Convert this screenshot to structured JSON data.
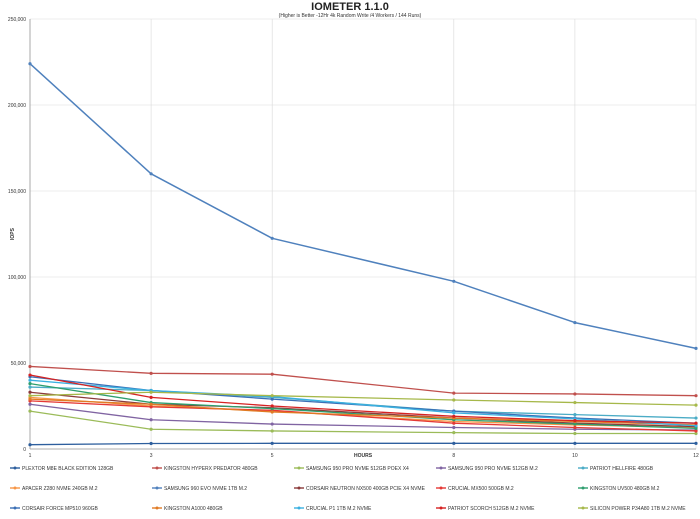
{
  "chart_data": {
    "type": "line",
    "title": "IOMETER 1.1.0",
    "subtitle": "(Higher is Better -12Hr 4k Random Write /4 Workers / 144 Runs)",
    "xlabel": "HOURS",
    "ylabel": "IOPS",
    "x": [
      1,
      3,
      5,
      8,
      10,
      12
    ],
    "ylim": [
      0,
      250000
    ],
    "yticks": [
      "0",
      "50,000",
      "100,000",
      "150,000",
      "200,000",
      "250,000"
    ],
    "grid": true,
    "legend_position": "bottom",
    "series": [
      {
        "name": "PLEXTOR M8E BLACK EDITION 128GB",
        "color": "#2e5f9e",
        "values": [
          2500,
          3200,
          3300,
          3300,
          3300,
          3300
        ]
      },
      {
        "name": "KINGSTON HYPERX PREDATOR 480GB",
        "color": "#c0504d",
        "values": [
          48000,
          44000,
          43500,
          32500,
          32000,
          31000
        ]
      },
      {
        "name": "SAMSUNG 950 PRO NVME 512GB POEX X4",
        "color": "#9bbb59",
        "values": [
          22000,
          11500,
          10500,
          9500,
          9000,
          9000
        ]
      },
      {
        "name": "SAMSUNG 950 PRO NVME 512GB M.2",
        "color": "#8064a2",
        "values": [
          26000,
          17000,
          14500,
          12500,
          11500,
          11000
        ]
      },
      {
        "name": "PATRIOT HELLFIRE 480GB",
        "color": "#4bacc6",
        "values": [
          36000,
          34000,
          30000,
          22000,
          20000,
          18000
        ]
      },
      {
        "name": "APACER Z280 NVME 240GB M.2",
        "color": "#f79646",
        "values": [
          30000,
          25000,
          22000,
          16000,
          14000,
          12500
        ]
      },
      {
        "name": "SAMSUNG 960 EVO NVME 1TB M.2",
        "color": "#4f81bd",
        "values": [
          224000,
          160000,
          122500,
          97500,
          73500,
          58500
        ]
      },
      {
        "name": "CORSAIR NEUTRON NX500 400GB PCIE X4 NVME",
        "color": "#8b3a3a",
        "values": [
          33000,
          26000,
          24000,
          18000,
          15000,
          13000
        ]
      },
      {
        "name": "CRUCIAL MX500 500GB M.2",
        "color": "#e53935",
        "values": [
          28000,
          24500,
          22500,
          15000,
          12500,
          10500
        ]
      },
      {
        "name": "KINGSTON UV500 480GB M.2",
        "color": "#2e9e6e",
        "values": [
          38000,
          27000,
          23500,
          17000,
          14500,
          12000
        ]
      },
      {
        "name": "CORSAIR FORCE MP510 960GB",
        "color": "#3b6fb5",
        "values": [
          42000,
          34000,
          29000,
          22000,
          18000,
          15000
        ]
      },
      {
        "name": "KINGSTON A1000 480GB",
        "color": "#e07b24",
        "values": [
          29000,
          26000,
          21500,
          18000,
          16000,
          14000
        ]
      },
      {
        "name": "CRUCIAL P1 1TB M.2 NVME",
        "color": "#3ab0e0",
        "values": [
          40000,
          34000,
          30500,
          21000,
          17500,
          13500
        ]
      },
      {
        "name": "PATRIOT SCORCH 512GB M.2 NVME",
        "color": "#d62222",
        "values": [
          43000,
          30000,
          25000,
          19000,
          16500,
          15000
        ]
      },
      {
        "name": "SILICON POWER P34A80 1TB M.2 NVME",
        "color": "#a6b84a",
        "values": [
          31000,
          33000,
          31000,
          28500,
          27000,
          25500
        ]
      }
    ]
  }
}
